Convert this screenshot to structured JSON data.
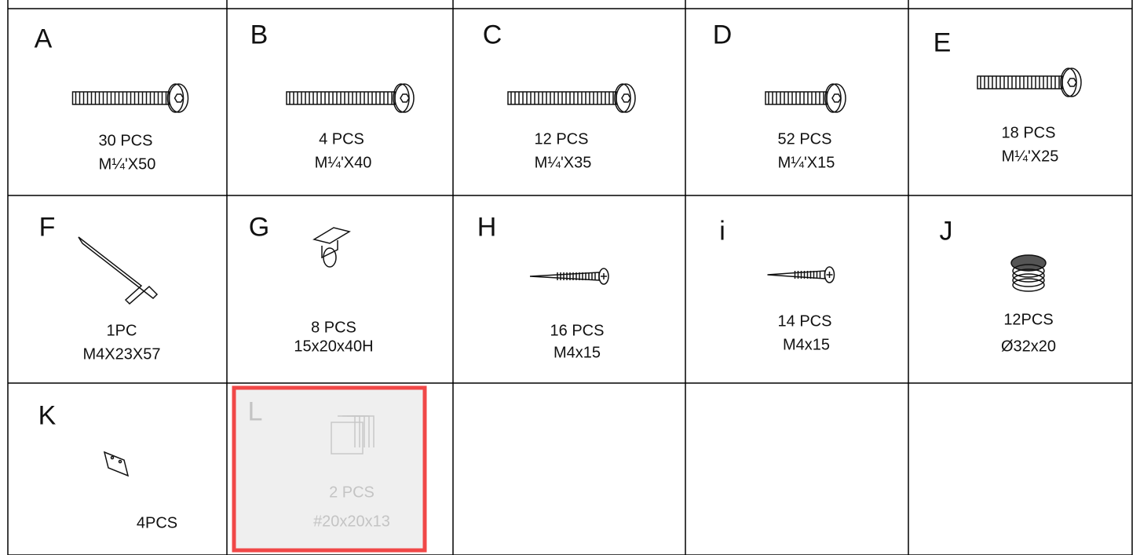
{
  "parts": [
    {
      "letter": "A",
      "quantity": "30 PCS",
      "size": "M¼'X50"
    },
    {
      "letter": "B",
      "quantity": "4 PCS",
      "size": "M¼'X40"
    },
    {
      "letter": "C",
      "quantity": "12 PCS",
      "size": "M¼'X35"
    },
    {
      "letter": "D",
      "quantity": "52 PCS",
      "size": "M¼'X15"
    },
    {
      "letter": "E",
      "quantity": "18 PCS",
      "size": "M¼'X25"
    },
    {
      "letter": "F",
      "quantity": "1PC",
      "size": "M4X23X57"
    },
    {
      "letter": "G",
      "quantity": "8 PCS",
      "size": "15x20x40H"
    },
    {
      "letter": "H",
      "quantity": "16 PCS",
      "size": "M4x15"
    },
    {
      "letter": "i",
      "quantity": "14 PCS",
      "size": "M4x15"
    },
    {
      "letter": "J",
      "quantity": "12PCS",
      "size": "Ø32x20"
    },
    {
      "letter": "K",
      "quantity": "4PCS"
    },
    {
      "letter": "L",
      "quantity": "2 PCS",
      "size": "#20x20x13",
      "highlighted": true
    }
  ]
}
